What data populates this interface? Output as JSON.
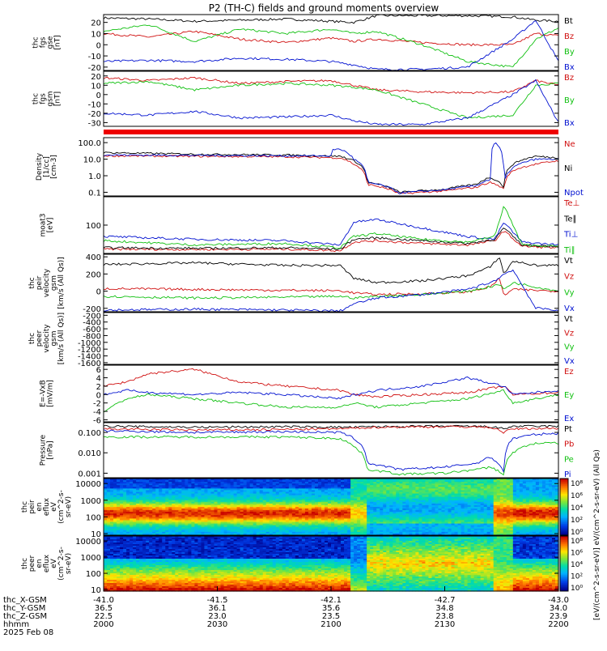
{
  "title": "P2 (TH-C) fields and ground moments overview",
  "chart_data": [
    {
      "type": "line",
      "panel_id": "fgs-gse",
      "ylabel_lines": [
        "thc",
        "fgs",
        "gse",
        "[nT]"
      ],
      "yticks": [
        20,
        10,
        0,
        -10,
        -20
      ],
      "ylim": [
        -23,
        27
      ],
      "series": [
        {
          "name": "Bt",
          "color": "#000000",
          "x": [
            0,
            10,
            20,
            30,
            40,
            50,
            55,
            60,
            70,
            80,
            90,
            95,
            100
          ],
          "y": [
            24,
            23,
            21,
            22,
            23,
            21,
            20,
            26,
            26,
            26,
            25,
            22,
            21
          ]
        },
        {
          "name": "Bz",
          "color": "#d01010",
          "x": [
            0,
            10,
            20,
            30,
            40,
            50,
            55,
            60,
            70,
            80,
            90,
            95,
            100
          ],
          "y": [
            10,
            7,
            12,
            5,
            2,
            6,
            3,
            5,
            2,
            0,
            0,
            10,
            8
          ]
        },
        {
          "name": "By",
          "color": "#10c010",
          "x": [
            0,
            10,
            20,
            30,
            40,
            50,
            55,
            60,
            70,
            80,
            90,
            95,
            100
          ],
          "y": [
            12,
            18,
            3,
            14,
            10,
            14,
            10,
            12,
            0,
            -15,
            -20,
            5,
            15
          ]
        },
        {
          "name": "Bx",
          "color": "#0010d0",
          "x": [
            0,
            10,
            20,
            30,
            40,
            50,
            55,
            60,
            70,
            80,
            90,
            95,
            100
          ],
          "y": [
            -15,
            -14,
            -15,
            -12,
            -13,
            -15,
            -18,
            -22,
            -22,
            -20,
            5,
            22,
            -15
          ]
        }
      ]
    },
    {
      "type": "line",
      "panel_id": "fgs-gsm",
      "ylabel_lines": [
        "thc",
        "fgs",
        "gsm",
        "[nT]"
      ],
      "yticks": [
        20,
        10,
        0,
        -10,
        -20,
        -30
      ],
      "ylim": [
        -34,
        25
      ],
      "series": [
        {
          "name": "Bz",
          "color": "#d01010",
          "x": [
            0,
            10,
            20,
            30,
            40,
            50,
            55,
            60,
            70,
            80,
            90,
            95,
            100
          ],
          "y": [
            18,
            15,
            18,
            12,
            14,
            15,
            10,
            5,
            3,
            2,
            3,
            15,
            10
          ]
        },
        {
          "name": "By",
          "color": "#10c010",
          "x": [
            0,
            10,
            20,
            30,
            40,
            50,
            55,
            60,
            70,
            80,
            90,
            95,
            100
          ],
          "y": [
            12,
            14,
            5,
            10,
            12,
            10,
            8,
            5,
            -10,
            -25,
            -22,
            10,
            12
          ]
        },
        {
          "name": "Bx",
          "color": "#0010d0",
          "x": [
            0,
            10,
            20,
            30,
            40,
            50,
            55,
            60,
            70,
            80,
            90,
            95,
            100
          ],
          "y": [
            -20,
            -22,
            -18,
            -25,
            -24,
            -22,
            -28,
            -32,
            -32,
            -25,
            0,
            15,
            -30
          ]
        }
      ]
    },
    {
      "type": "line",
      "panel_id": "density",
      "ylabel_lines": [
        "Density",
        "[1/cc]",
        "[cm-3]"
      ],
      "yscale": "log",
      "yticks": [
        100.0,
        10.0,
        1.0,
        0.1
      ],
      "ytick_labels": [
        "100.0",
        "10.0",
        "1.0",
        "0.1"
      ],
      "ylim": [
        0.06,
        200
      ],
      "series": [
        {
          "name": "Ne",
          "color": "#d01010",
          "x": [
            0,
            20,
            40,
            52,
            55,
            58,
            65,
            75,
            82,
            85,
            88,
            90,
            95,
            100
          ],
          "y": [
            16,
            15,
            14,
            12,
            5,
            0.3,
            0.08,
            0.12,
            0.2,
            0.4,
            0.15,
            2,
            5,
            8
          ]
        },
        {
          "name": "Ni",
          "color": "#000000",
          "x": [
            0,
            20,
            40,
            52,
            55,
            58,
            65,
            75,
            82,
            85,
            88,
            90,
            95,
            100
          ],
          "y": [
            25,
            20,
            18,
            15,
            8,
            0.4,
            0.1,
            0.15,
            0.3,
            0.8,
            0.2,
            5,
            15,
            12
          ]
        },
        {
          "name": "Npot",
          "color": "#0010d0",
          "x": [
            0,
            20,
            40,
            50,
            50.5,
            52,
            55,
            58,
            65,
            75,
            82,
            85,
            86,
            88,
            90,
            95,
            100
          ],
          "y": [
            18,
            17,
            16,
            16,
            40,
            40,
            10,
            0.4,
            0.09,
            0.14,
            0.25,
            0.6,
            100,
            0.2,
            3,
            10,
            10
          ]
        }
      ]
    },
    {
      "type": "line",
      "panel_id": "temperature",
      "ylabel_lines": [
        "moat3",
        "[eV]"
      ],
      "yticks": [
        100
      ],
      "ylim": [
        0,
        200
      ],
      "series": [
        {
          "name": "Te⊥",
          "color": "#d01010",
          "x": [
            0,
            20,
            40,
            52,
            55,
            60,
            70,
            80,
            86,
            88,
            92,
            100
          ],
          "y": [
            15,
            14,
            15,
            10,
            40,
            45,
            35,
            30,
            45,
            80,
            25,
            20
          ]
        },
        {
          "name": "Te∥",
          "color": "#000000",
          "x": [
            0,
            20,
            40,
            52,
            55,
            60,
            70,
            80,
            86,
            88,
            92,
            100
          ],
          "y": [
            20,
            18,
            20,
            15,
            50,
            55,
            45,
            35,
            50,
            90,
            30,
            25
          ]
        },
        {
          "name": "Ti⊥",
          "color": "#0010d0",
          "x": [
            0,
            20,
            40,
            52,
            55,
            60,
            70,
            80,
            86,
            88,
            92,
            100
          ],
          "y": [
            60,
            50,
            45,
            30,
            110,
            120,
            90,
            60,
            50,
            110,
            40,
            30
          ]
        },
        {
          "name": "Ti∥",
          "color": "#10c010",
          "x": [
            0,
            20,
            40,
            52,
            55,
            60,
            70,
            80,
            86,
            88,
            92,
            100
          ],
          "y": [
            45,
            30,
            35,
            20,
            60,
            70,
            50,
            40,
            60,
            170,
            30,
            25
          ]
        }
      ]
    },
    {
      "type": "line",
      "panel_id": "peir-velocity",
      "ylabel_lines": [
        "thc",
        "peir",
        "velocity",
        "gsm",
        "[km/s (All Qs)]"
      ],
      "yticks": [
        400,
        200,
        0,
        -200
      ],
      "ylim": [
        -240,
        430
      ],
      "series": [
        {
          "name": "Vt",
          "color": "#000000",
          "x": [
            0,
            20,
            40,
            52,
            55,
            60,
            70,
            80,
            85,
            87,
            88,
            90,
            95,
            100
          ],
          "y": [
            310,
            330,
            300,
            300,
            150,
            100,
            120,
            180,
            280,
            400,
            200,
            350,
            300,
            300
          ]
        },
        {
          "name": "Vz",
          "color": "#d01010",
          "x": [
            0,
            20,
            40,
            52,
            55,
            60,
            70,
            80,
            85,
            87,
            88,
            90,
            95,
            100
          ],
          "y": [
            30,
            20,
            10,
            5,
            -20,
            -40,
            -30,
            -10,
            50,
            150,
            -50,
            20,
            10,
            0
          ]
        },
        {
          "name": "Vy",
          "color": "#10c010",
          "x": [
            0,
            20,
            40,
            52,
            55,
            60,
            70,
            80,
            85,
            87,
            88,
            90,
            95,
            100
          ],
          "y": [
            -60,
            -80,
            -70,
            -60,
            -80,
            -60,
            -40,
            0,
            50,
            80,
            20,
            100,
            50,
            0
          ]
        },
        {
          "name": "Vx",
          "color": "#0010d0",
          "x": [
            0,
            20,
            40,
            52,
            55,
            60,
            70,
            80,
            85,
            87,
            88,
            90,
            95,
            100
          ],
          "y": [
            -220,
            -210,
            -220,
            -230,
            -150,
            -80,
            -40,
            20,
            100,
            150,
            200,
            250,
            -200,
            -220
          ]
        }
      ]
    },
    {
      "type": "line",
      "panel_id": "peer-velocity",
      "ylabel_lines": [
        "thc",
        "peer",
        "velocity",
        "gsm",
        "[km/s (All Qs)]"
      ],
      "yticks": [
        -200,
        -400,
        -600,
        -800,
        -1000,
        -1200,
        -1400,
        -1600
      ],
      "ylim": [
        -1650,
        -120
      ],
      "series": [
        {
          "name": "Vt",
          "color": "#000000",
          "x": [],
          "y": []
        },
        {
          "name": "Vz",
          "color": "#d01010",
          "x": [],
          "y": []
        },
        {
          "name": "Vy",
          "color": "#10c010",
          "x": [],
          "y": []
        },
        {
          "name": "Vx",
          "color": "#0010d0",
          "x": [],
          "y": []
        }
      ]
    },
    {
      "type": "line",
      "panel_id": "efield",
      "ylabel_lines": [
        "E=-VxB",
        "[mV/m]"
      ],
      "yticks": [
        6,
        4,
        2,
        0,
        -2,
        -4,
        -6
      ],
      "ylim": [
        -6.5,
        7
      ],
      "series": [
        {
          "name": "Ez",
          "color": "#d01010",
          "x": [
            0,
            5,
            10,
            20,
            30,
            40,
            52,
            55,
            60,
            70,
            80,
            88,
            90,
            100
          ],
          "y": [
            2,
            3,
            5,
            6,
            3,
            2,
            1,
            0,
            -0.5,
            0,
            0.5,
            2,
            0,
            0.5
          ]
        },
        {
          "name": "Ey",
          "color": "#10c010",
          "x": [
            0,
            5,
            10,
            20,
            30,
            40,
            52,
            55,
            60,
            70,
            80,
            88,
            90,
            100
          ],
          "y": [
            -4,
            -1,
            0,
            -1,
            -2,
            -3,
            -3,
            -2,
            -3,
            -2,
            -1,
            1,
            -2,
            0
          ]
        },
        {
          "name": "Ex",
          "color": "#0010d0",
          "x": [
            0,
            5,
            10,
            20,
            30,
            40,
            52,
            55,
            60,
            70,
            80,
            88,
            90,
            100
          ],
          "y": [
            0,
            1,
            0.5,
            0,
            0.5,
            0,
            -1,
            0,
            1,
            2,
            4,
            2,
            0,
            1
          ]
        }
      ]
    },
    {
      "type": "line",
      "panel_id": "pressure",
      "ylabel_lines": [
        "Pressure",
        "[nPa]"
      ],
      "yscale": "log",
      "yticks": [
        0.1,
        0.01,
        0.001
      ],
      "ytick_labels": [
        "0.100",
        "0.010",
        "0.001"
      ],
      "ylim": [
        0.0006,
        0.3
      ],
      "series": [
        {
          "name": "Pt",
          "color": "#000000",
          "x": [
            0,
            20,
            40,
            52,
            55,
            60,
            70,
            80,
            85,
            88,
            90,
            100
          ],
          "y": [
            0.2,
            0.18,
            0.19,
            0.18,
            0.18,
            0.19,
            0.2,
            0.2,
            0.19,
            0.15,
            0.2,
            0.2
          ]
        },
        {
          "name": "Pb",
          "color": "#d01010",
          "x": [
            0,
            20,
            40,
            52,
            55,
            60,
            70,
            80,
            85,
            88,
            90,
            100
          ],
          "y": [
            0.15,
            0.13,
            0.14,
            0.15,
            0.16,
            0.18,
            0.19,
            0.19,
            0.18,
            0.1,
            0.15,
            0.16
          ]
        },
        {
          "name": "Pe",
          "color": "#10c010",
          "x": [
            0,
            20,
            40,
            52,
            55,
            58,
            65,
            75,
            82,
            85,
            88,
            90,
            95,
            100
          ],
          "y": [
            0.06,
            0.06,
            0.06,
            0.05,
            0.02,
            0.0015,
            0.0009,
            0.001,
            0.0015,
            0.002,
            0.0008,
            0.01,
            0.03,
            0.03
          ]
        },
        {
          "name": "Pi",
          "color": "#0010d0",
          "x": [
            0,
            20,
            40,
            52,
            55,
            58,
            65,
            75,
            82,
            85,
            88,
            90,
            95,
            100
          ],
          "y": [
            0.12,
            0.1,
            0.11,
            0.1,
            0.05,
            0.003,
            0.0015,
            0.002,
            0.003,
            0.006,
            0.001,
            0.05,
            0.08,
            0.09
          ]
        }
      ]
    },
    {
      "type": "heatmap",
      "panel_id": "peir-spectrogram",
      "ylabel_lines": [
        "thc",
        "peir",
        "en",
        "eflux",
        "eV",
        "(cm^2-s-",
        "sr-eV)"
      ],
      "yscale": "log",
      "yticks": [
        10000,
        1000,
        100,
        10
      ],
      "ytick_labels": [
        "10000",
        "1000",
        "100",
        "10"
      ],
      "ylim": [
        8,
        20000
      ]
    },
    {
      "type": "heatmap",
      "panel_id": "peer-spectrogram",
      "ylabel_lines": [
        "thc",
        "peer",
        "en",
        "eflux",
        "eV",
        "(cm^2-s-",
        "sr-eV)"
      ],
      "yscale": "log",
      "yticks": [
        10000,
        1000,
        100,
        10
      ],
      "ytick_labels": [
        "10000",
        "1000",
        "100",
        "10"
      ],
      "ylim": [
        8,
        20000
      ]
    }
  ],
  "colorbar": {
    "label": "[eV/(cm^2-s-sr-eV)] eV/(cm^2-s-sr-eV) (All Qs)",
    "peir_labels": [
      "10⁸",
      "10⁶",
      "10⁴",
      "10²",
      "10⁰"
    ],
    "peer_labels": [
      "10⁸",
      "10⁶",
      "10⁴",
      "10²",
      "10⁰"
    ]
  },
  "x_axis": {
    "row_labels": [
      "thc_X-GSM",
      "thc_Y-GSM",
      "thc_Z-GSM",
      "hhmm",
      "2025 Feb 08"
    ],
    "columns": [
      [
        "-41.0",
        "36.5",
        "22.5",
        "2000"
      ],
      [
        "-41.5",
        "36.1",
        "23.0",
        "2030"
      ],
      [
        "-42.1",
        "35.6",
        "23.5",
        "2100"
      ],
      [
        "-42.7",
        "34.8",
        "23.8",
        "2130"
      ],
      [
        "-43.0",
        "34.0",
        "23.9",
        "2200"
      ]
    ]
  }
}
